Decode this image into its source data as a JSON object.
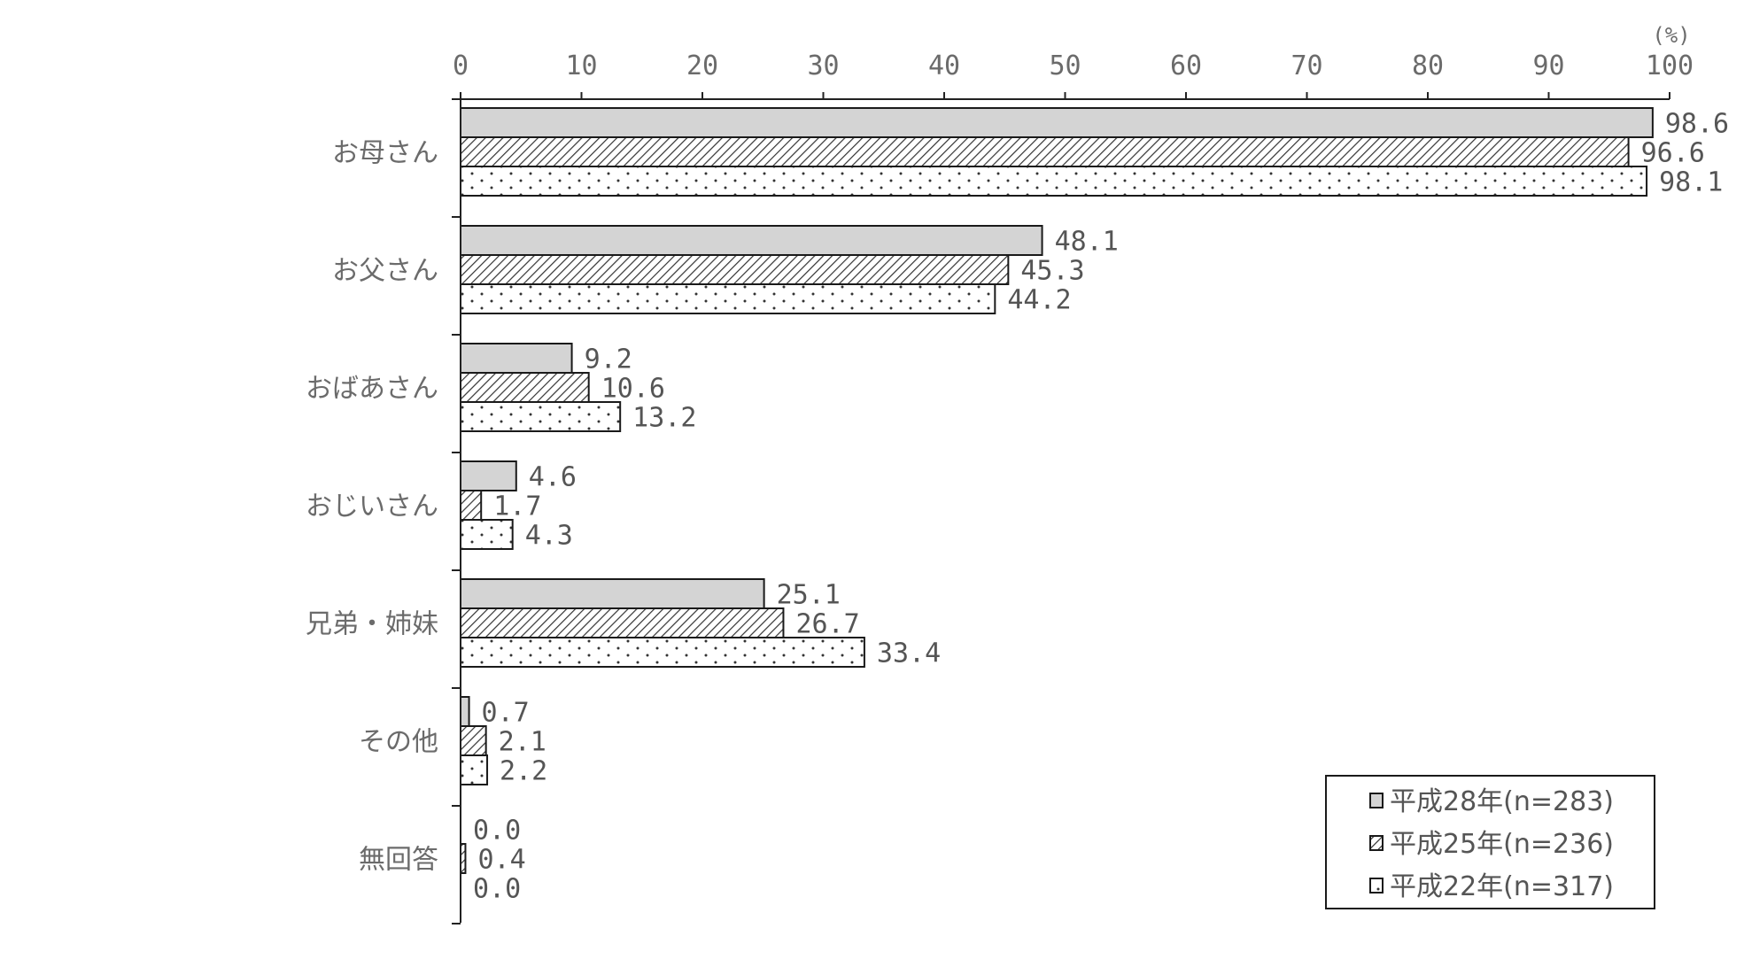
{
  "chart_data": {
    "type": "bar",
    "orientation": "horizontal",
    "unit_label": "(%)",
    "xlim": [
      0,
      100
    ],
    "x_ticks": [
      0,
      10,
      20,
      30,
      40,
      50,
      60,
      70,
      80,
      90,
      100
    ],
    "categories": [
      "お母さん",
      "お父さん",
      "おばあさん",
      "おじいさん",
      "兄弟・姉妹",
      "その他",
      "無回答"
    ],
    "series": [
      {
        "name": "平成28年(n=283)",
        "values": [
          98.6,
          48.1,
          9.2,
          4.6,
          25.1,
          0.7,
          0.0
        ],
        "labels": [
          "98.6",
          "48.1",
          "9.2",
          "4.6",
          "25.1",
          "0.7",
          "0.0"
        ],
        "fill": "#d4d4d4",
        "pattern": "solid"
      },
      {
        "name": "平成25年(n=236)",
        "values": [
          96.6,
          45.3,
          10.6,
          1.7,
          26.7,
          2.1,
          0.4
        ],
        "labels": [
          "96.6",
          "45.3",
          "10.6",
          "1.7",
          "26.7",
          "2.1",
          "0.4"
        ],
        "fill": "#ffffff",
        "pattern": "diagonal-hatch"
      },
      {
        "name": "平成22年(n=317)",
        "values": [
          98.1,
          44.2,
          13.2,
          4.3,
          33.4,
          2.2,
          0.0
        ],
        "labels": [
          "98.1",
          "44.2",
          "13.2",
          "4.3",
          "33.4",
          "2.2",
          "0.0"
        ],
        "fill": "#ffffff",
        "pattern": "dots"
      }
    ],
    "grid": false,
    "legend_position": "bottom-right"
  }
}
